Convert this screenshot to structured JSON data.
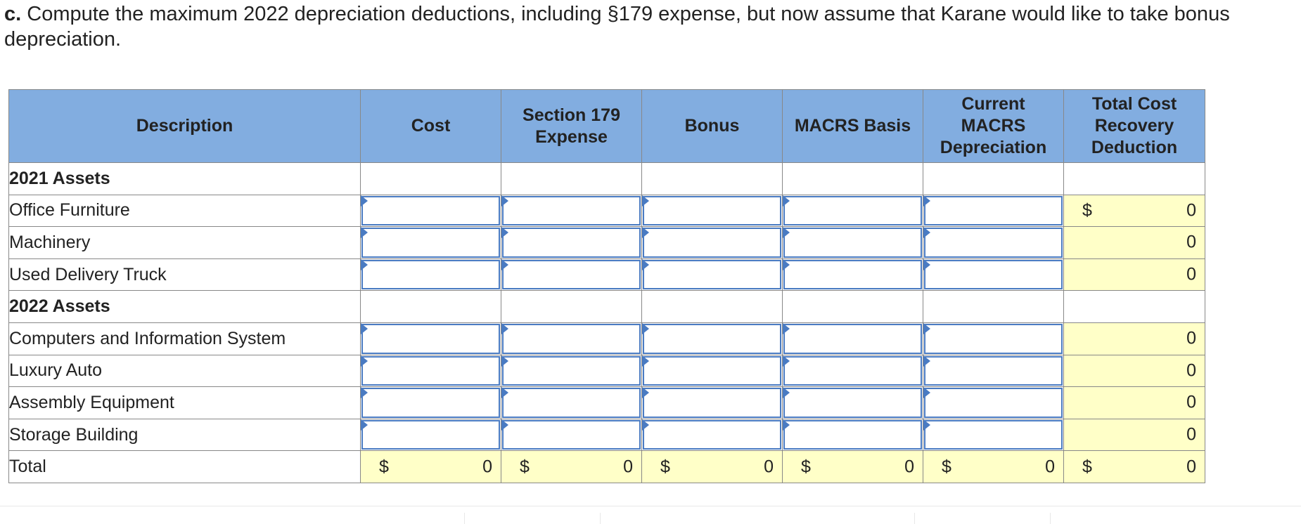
{
  "question": {
    "label": "c.",
    "text": " Compute the maximum 2022 depreciation deductions, including §179 expense, but now assume that Karane would like to take bonus depreciation."
  },
  "table": {
    "headers": [
      "Description",
      "Cost",
      "Section 179 Expense",
      "Bonus",
      "MACRS Basis",
      "Current MACRS Depreciation",
      "Total Cost Recovery Deduction"
    ],
    "rows": [
      {
        "label": "2021 Assets",
        "type": "section"
      },
      {
        "label": "Office Furniture",
        "type": "asset",
        "total_currency": "$",
        "total": "0"
      },
      {
        "label": "Machinery",
        "type": "asset",
        "total_currency": "",
        "total": "0"
      },
      {
        "label": "Used Delivery Truck",
        "type": "asset",
        "total_currency": "",
        "total": "0"
      },
      {
        "label": "2022 Assets",
        "type": "section"
      },
      {
        "label": "Computers and Information System",
        "type": "asset",
        "total_currency": "",
        "total": "0"
      },
      {
        "label": "Luxury Auto",
        "type": "asset",
        "total_currency": "",
        "total": "0"
      },
      {
        "label": "Assembly Equipment",
        "type": "asset",
        "total_currency": "",
        "total": "0"
      },
      {
        "label": "Storage Building",
        "type": "asset",
        "total_currency": "",
        "total": "0"
      }
    ],
    "total_row": {
      "label": "Total",
      "cells": [
        {
          "currency": "$",
          "value": "0"
        },
        {
          "currency": "$",
          "value": "0"
        },
        {
          "currency": "$",
          "value": "0"
        },
        {
          "currency": "$",
          "value": "0"
        },
        {
          "currency": "$",
          "value": "0"
        },
        {
          "currency": "$",
          "value": "0"
        }
      ]
    }
  },
  "colors": {
    "header_bg": "#82ade0",
    "computed_bg": "#ffffc8",
    "input_border": "#4a7bc2"
  }
}
